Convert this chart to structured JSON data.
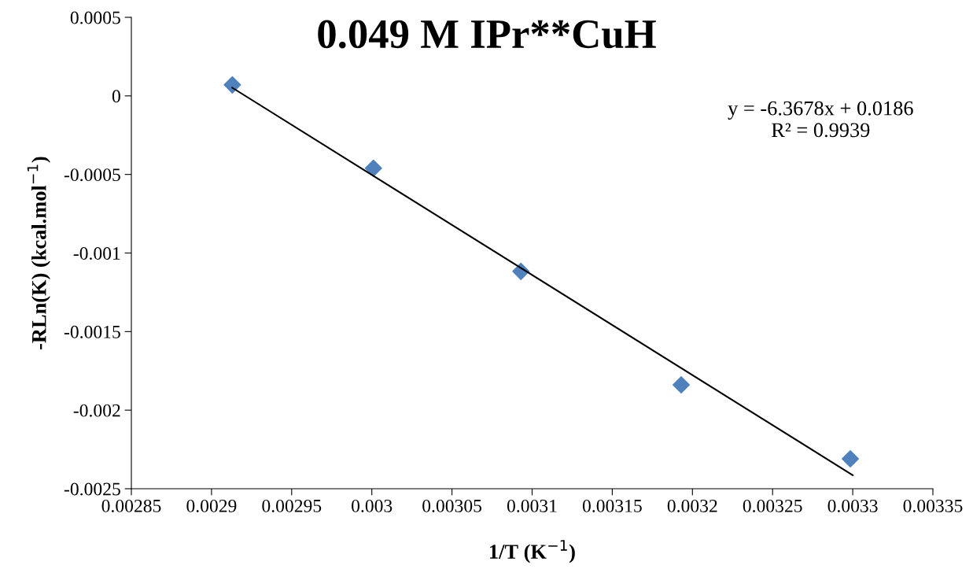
{
  "chart_data": {
    "type": "scatter",
    "title": "0.049 M IPr**CuH",
    "xlabel": "1/T (K$^{−1}$)",
    "ylabel": "-RLn(K) (kcal.mol$^{−1}$)",
    "series": [
      {
        "color": "#4f81bd",
        "marker": "diamond",
        "x": [
          0.002913,
          0.003001,
          0.003093,
          0.003193,
          0.0032985
        ],
        "values": [
          7e-05,
          -0.00046,
          -0.001117,
          -0.001839,
          -0.00231
        ]
      },
      {
        "type": "line",
        "color": "#000000",
        "marker": "none",
        "line_style": "solid",
        "x": [
          0.002913,
          0.0033
        ],
        "values": [
          5.16e-05,
          -0.002414
        ]
      }
    ],
    "xlim": [
      0.00285,
      0.00335
    ],
    "xticks": [
      0.00285,
      0.0029,
      0.00295,
      0.003,
      0.00305,
      0.0031,
      0.00315,
      0.0032,
      0.00325,
      0.0033,
      0.00335
    ],
    "ylim": [
      -0.0025,
      0.0005
    ],
    "yticks": [
      -0.0025,
      -0.002,
      -0.0015,
      -0.001,
      -0.0005,
      0,
      0.0005
    ],
    "annotations": [
      "y = -6.3678x + 0.0186\nR² = 0.9939"
    ],
    "grid": false,
    "legend": false
  }
}
